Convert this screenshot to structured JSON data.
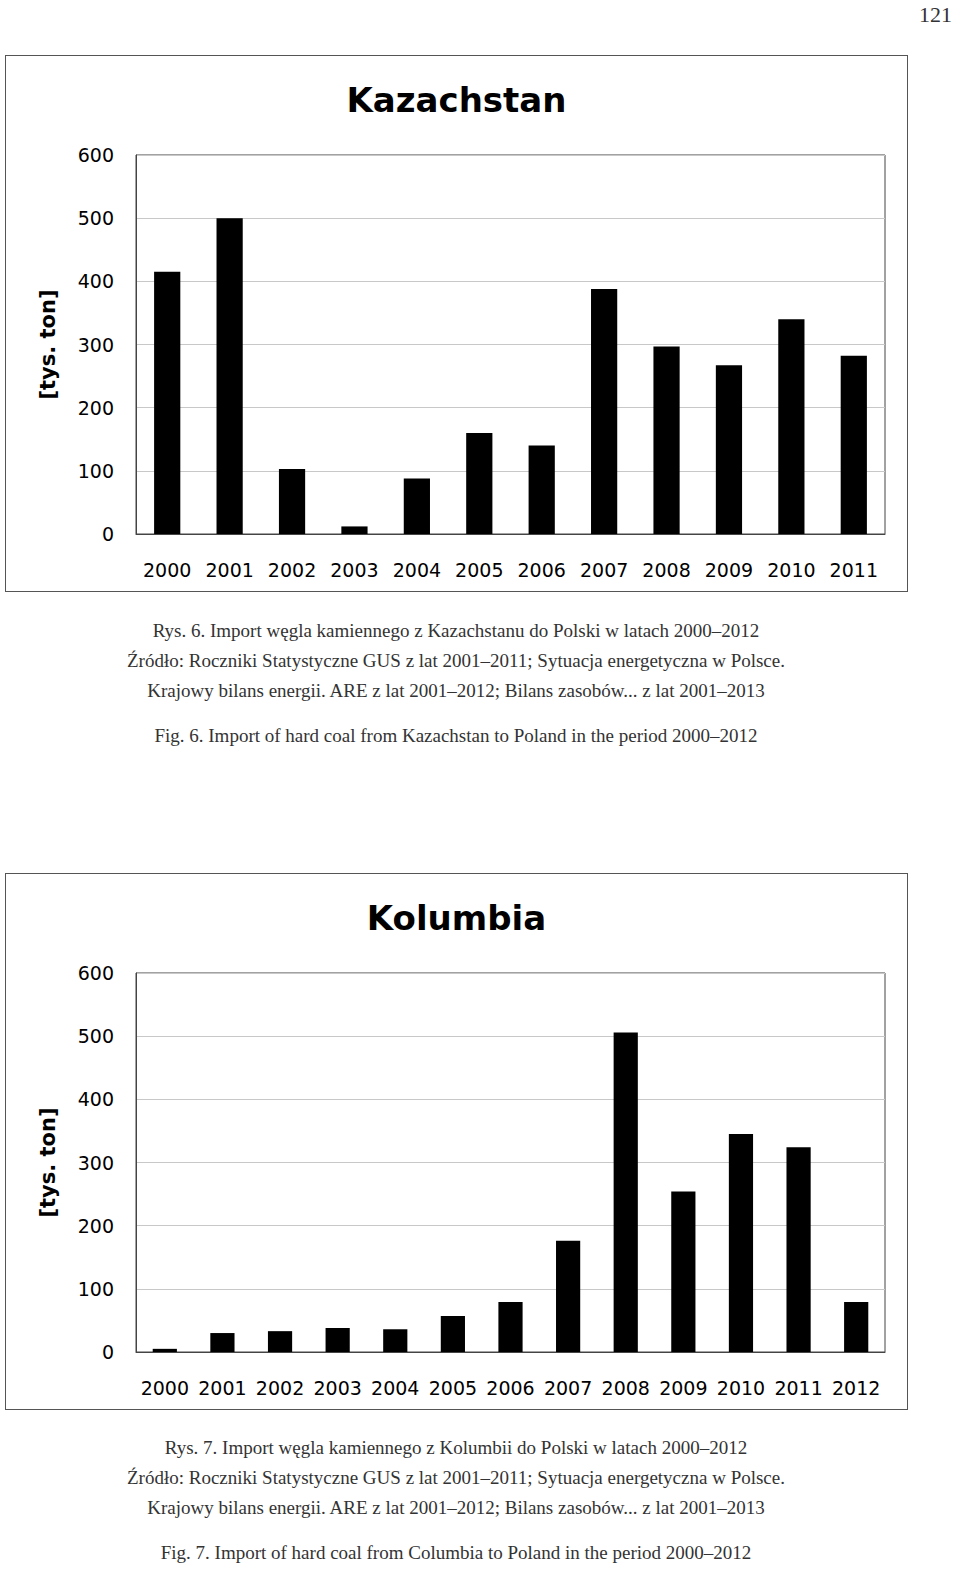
{
  "page_number": "121",
  "chart_data": [
    {
      "type": "bar",
      "title": "Kazachstan",
      "y_label": "[tys. ton]",
      "categories": [
        "2000",
        "2001",
        "2002",
        "2003",
        "2004",
        "2005",
        "2006",
        "2007",
        "2008",
        "2009",
        "2010",
        "2011"
      ],
      "values": [
        415,
        500,
        103,
        12,
        88,
        160,
        140,
        388,
        297,
        267,
        340,
        282
      ],
      "color": "#000000",
      "ylim": [
        0,
        600
      ],
      "yticks": [
        0,
        100,
        200,
        300,
        400,
        500,
        600
      ],
      "grid": true
    },
    {
      "type": "bar",
      "title": "Kolumbia",
      "y_label": "[tys. ton]",
      "categories": [
        "2000",
        "2001",
        "2002",
        "2003",
        "2004",
        "2005",
        "2006",
        "2007",
        "2008",
        "2009",
        "2010",
        "2011",
        "2012"
      ],
      "values": [
        5,
        30,
        33,
        38,
        36,
        57,
        79,
        176,
        506,
        254,
        345,
        324,
        79
      ],
      "color": "#000000",
      "ylim": [
        0,
        600
      ],
      "yticks": [
        0,
        100,
        200,
        300,
        400,
        500,
        600
      ],
      "grid": true
    }
  ],
  "captions": [
    {
      "lines": [
        "Rys. 6. Import węgla kamiennego z Kazachstanu do Polski w latach 2000–2012",
        "Źródło: Roczniki Statystyczne GUS z lat 2001–2011; Sytuacja energetyczna w Polsce.",
        "Krajowy bilans energii. ARE z lat 2001–2012; Bilans zasobów... z lat 2001–2013"
      ],
      "english": "Fig. 6. Import of hard coal from Kazachstan to Poland in the period 2000–2012"
    },
    {
      "lines": [
        "Rys. 7. Import węgla kamiennego z Kolumbii do Polski w latach 2000–2012",
        "Źródło: Roczniki Statystyczne GUS z lat 2001–2011; Sytuacja energetyczna w Polsce.",
        "Krajowy bilans energii. ARE z lat 2001–2012; Bilans zasobów... z lat 2001–2013"
      ],
      "english": "Fig. 7. Import of hard coal from Columbia to Poland in the period 2000–2012"
    }
  ]
}
